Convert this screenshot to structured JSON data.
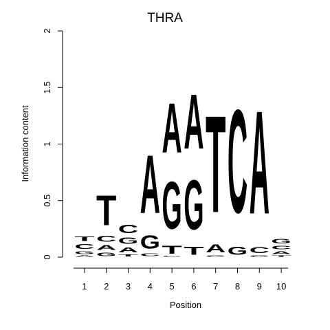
{
  "chart_data": {
    "type": "sequence-logo",
    "title": "THRA",
    "xlabel": "Position",
    "ylabel": "Information content",
    "ylim": [
      0,
      2
    ],
    "yticks": [
      "0",
      "0.5",
      "1",
      "1.5",
      "2"
    ],
    "positions": [
      "1",
      "2",
      "3",
      "4",
      "5",
      "6",
      "7",
      "8",
      "9",
      "10"
    ],
    "colors": {
      "A": "#00ee00",
      "C": "#0000ee",
      "G": "#ffa500",
      "T": "#ff0000"
    },
    "stacks": [
      [
        {
          "letter": "A",
          "height": 0.02
        },
        {
          "letter": "G",
          "height": 0.04
        },
        {
          "letter": "C",
          "height": 0.07
        },
        {
          "letter": "T",
          "height": 0.06
        }
      ],
      [
        {
          "letter": "G",
          "height": 0.05
        },
        {
          "letter": "A",
          "height": 0.07
        },
        {
          "letter": "C",
          "height": 0.08
        },
        {
          "letter": "T",
          "height": 0.42
        }
      ],
      [
        {
          "letter": "T",
          "height": 0.03
        },
        {
          "letter": "A",
          "height": 0.07
        },
        {
          "letter": "G",
          "height": 0.09
        },
        {
          "letter": "C",
          "height": 0.12
        }
      ],
      [
        {
          "letter": "C",
          "height": 0.04
        },
        {
          "letter": "G",
          "height": 0.19
        },
        {
          "letter": "A",
          "height": 0.82
        }
      ],
      [
        {
          "letter": "C",
          "height": 0.01
        },
        {
          "letter": "T",
          "height": 0.11
        },
        {
          "letter": "G",
          "height": 0.67
        },
        {
          "letter": "A",
          "height": 0.7
        }
      ],
      [
        {
          "letter": "T",
          "height": 0.11
        },
        {
          "letter": "G",
          "height": 0.7
        },
        {
          "letter": "A",
          "height": 0.77
        }
      ],
      [
        {
          "letter": "G",
          "height": 0.02
        },
        {
          "letter": "A",
          "height": 0.11
        },
        {
          "letter": "T",
          "height": 1.37
        }
      ],
      [
        {
          "letter": "G",
          "height": 0.11
        },
        {
          "letter": "C",
          "height": 1.46
        }
      ],
      [
        {
          "letter": "G",
          "height": 0.02
        },
        {
          "letter": "C",
          "height": 0.08
        },
        {
          "letter": "A",
          "height": 1.46
        }
      ],
      [
        {
          "letter": "T",
          "height": 0.02
        },
        {
          "letter": "A",
          "height": 0.04
        },
        {
          "letter": "C",
          "height": 0.05
        },
        {
          "letter": "G",
          "height": 0.06
        }
      ]
    ]
  }
}
